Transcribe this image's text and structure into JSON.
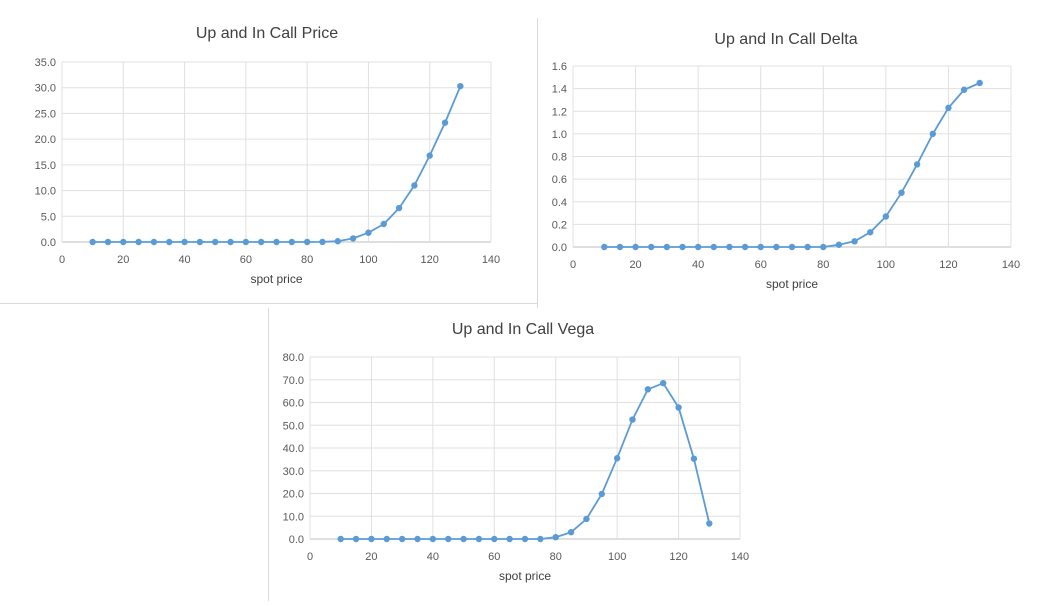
{
  "chart_data": [
    {
      "type": "scatter",
      "title": "Up and In Call Price",
      "xlabel": "spot price",
      "ylabel": "",
      "xlim": [
        0,
        140
      ],
      "ylim": [
        0,
        35
      ],
      "xticks": [
        "0",
        "20",
        "40",
        "60",
        "80",
        "100",
        "120",
        "140"
      ],
      "yticks": [
        "0.0",
        "5.0",
        "10.0",
        "15.0",
        "20.0",
        "25.0",
        "30.0",
        "35.0"
      ],
      "grid": true,
      "legend": "none",
      "color": "#5b9bd5",
      "x": [
        10,
        15,
        20,
        25,
        30,
        35,
        40,
        45,
        50,
        55,
        60,
        65,
        70,
        75,
        80,
        85,
        90,
        95,
        100,
        105,
        110,
        115,
        120,
        125,
        130
      ],
      "y": [
        0,
        0,
        0,
        0,
        0,
        0,
        0,
        0,
        0,
        0,
        0,
        0,
        0,
        0,
        0,
        0.02,
        0.15,
        0.7,
        1.8,
        3.5,
        6.6,
        11.0,
        16.8,
        23.2,
        30.3
      ]
    },
    {
      "type": "scatter",
      "title": "Up and In Call Delta",
      "xlabel": "spot price",
      "ylabel": "",
      "xlim": [
        0,
        140
      ],
      "ylim": [
        0,
        1.6
      ],
      "xticks": [
        "0",
        "20",
        "40",
        "60",
        "80",
        "100",
        "120",
        "140"
      ],
      "yticks": [
        "0.0",
        "0.2",
        "0.4",
        "0.6",
        "0.8",
        "1.0",
        "1.2",
        "1.4",
        "1.6"
      ],
      "grid": true,
      "legend": "none",
      "color": "#5b9bd5",
      "x": [
        10,
        15,
        20,
        25,
        30,
        35,
        40,
        45,
        50,
        55,
        60,
        65,
        70,
        75,
        80,
        85,
        90,
        95,
        100,
        105,
        110,
        115,
        120,
        125,
        130
      ],
      "y": [
        0,
        0,
        0,
        0,
        0,
        0,
        0,
        0,
        0,
        0,
        0,
        0,
        0,
        0,
        0,
        0.02,
        0.05,
        0.13,
        0.27,
        0.48,
        0.73,
        1.0,
        1.23,
        1.39,
        1.45
      ]
    },
    {
      "type": "scatter",
      "title": "Up and In Call Vega",
      "xlabel": "spot price",
      "ylabel": "",
      "xlim": [
        0,
        140
      ],
      "ylim": [
        0,
        80
      ],
      "xticks": [
        "0",
        "20",
        "40",
        "60",
        "80",
        "100",
        "120",
        "140"
      ],
      "yticks": [
        "0.0",
        "10.0",
        "20.0",
        "30.0",
        "40.0",
        "50.0",
        "60.0",
        "70.0",
        "80.0"
      ],
      "grid": true,
      "legend": "none",
      "color": "#5b9bd5",
      "x": [
        10,
        15,
        20,
        25,
        30,
        35,
        40,
        45,
        50,
        55,
        60,
        65,
        70,
        75,
        80,
        85,
        90,
        95,
        100,
        105,
        110,
        115,
        120,
        125,
        130
      ],
      "y": [
        0,
        0,
        0,
        0,
        0,
        0,
        0,
        0,
        0,
        0,
        0,
        0,
        0,
        0,
        0.8,
        3.0,
        8.8,
        19.8,
        35.5,
        52.5,
        65.8,
        68.5,
        57.8,
        35.3,
        6.8
      ]
    }
  ]
}
